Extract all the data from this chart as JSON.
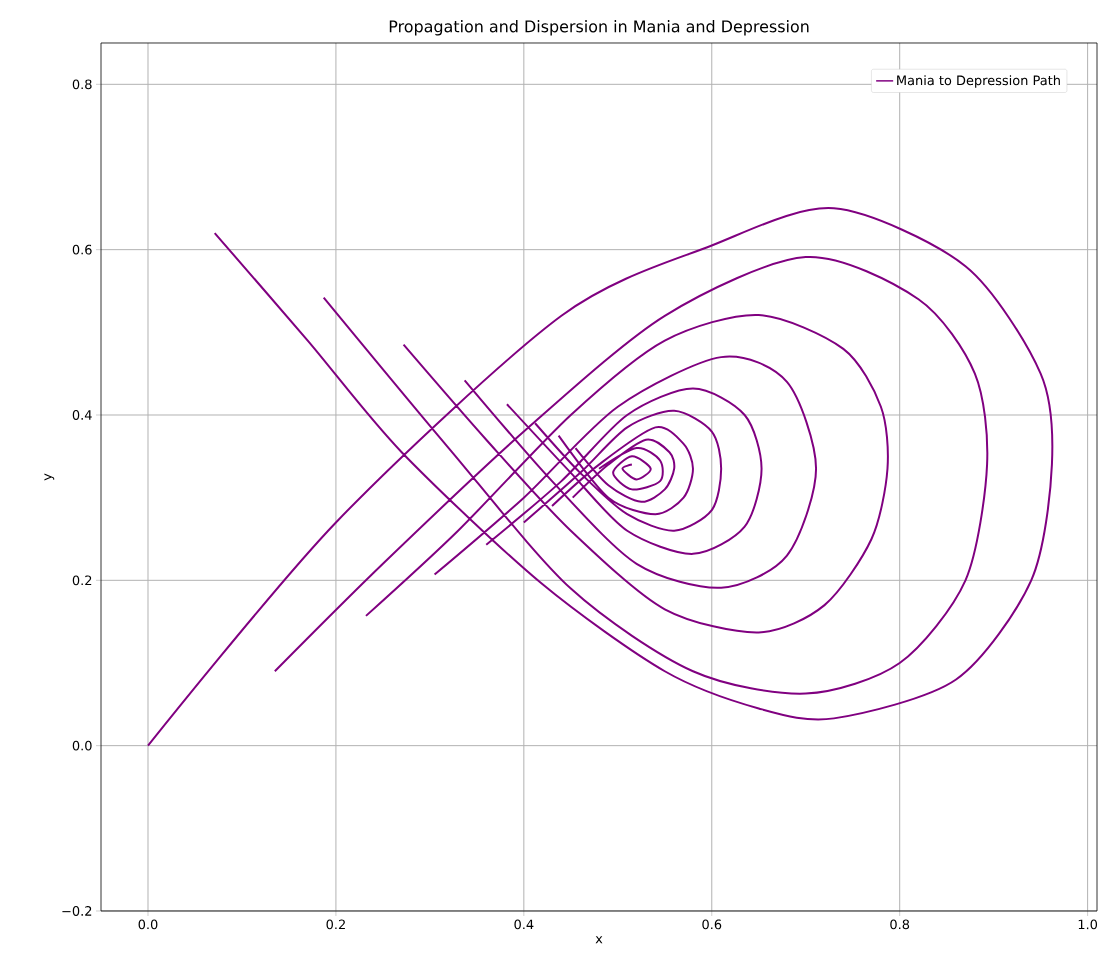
{
  "chart_data": {
    "type": "line",
    "title": "Propagation and Dispersion in Mania and Depression",
    "xlabel": "x",
    "ylabel": "y",
    "xlim": [
      -0.05,
      1.01
    ],
    "ylim": [
      -0.2,
      0.85
    ],
    "xticks": [
      {
        "value": 0,
        "label": "0.0"
      },
      0.2,
      0.4,
      0.6,
      0.8,
      {
        "value": 1,
        "label": "1.0"
      }
    ],
    "yticks": [
      {
        "value": -0.2,
        "label": "−0.2"
      },
      {
        "value": 0,
        "label": "0.0"
      },
      0.2,
      0.4,
      0.6,
      0.8
    ],
    "grid": true,
    "legend": "top right",
    "marker": "none",
    "line_style": "solid",
    "series": [
      {
        "name": "Mania to Depression Path",
        "color": "#800080",
        "x": [
          0,
          0.2,
          0.44,
          0.6,
          0.73,
          0.87,
          0.95,
          0.962,
          0.94,
          0.86,
          0.73,
          0.65,
          0.55,
          0.418,
          0.27,
          0.17,
          0.071,
          null,
          0.135,
          0.25,
          0.4,
          0.55,
          0.7,
          0.82,
          0.88,
          0.893,
          0.87,
          0.8,
          0.7,
          0.58,
          0.45,
          0.32,
          0.187,
          null,
          0.232,
          0.33,
          0.45,
          0.55,
          0.65,
          0.74,
          0.78,
          0.787,
          0.77,
          0.72,
          0.65,
          0.55,
          0.45,
          0.36,
          0.272,
          null,
          0.305,
          0.4,
          0.5,
          0.61,
          0.68,
          0.711,
          0.68,
          0.61,
          0.52,
          0.43,
          0.337,
          null,
          0.36,
          0.44,
          0.51,
          0.58,
          0.635,
          0.653,
          0.635,
          0.58,
          0.51,
          0.45,
          0.382,
          null,
          0.4,
          0.46,
          0.51,
          0.56,
          0.6,
          0.61,
          0.6,
          0.56,
          0.51,
          0.46,
          0.412,
          null,
          0.43,
          0.48,
          0.54,
          0.57,
          0.58,
          0.57,
          0.54,
          0.49,
          0.437,
          null,
          0.452,
          0.49,
          0.53,
          0.555,
          0.56,
          0.55,
          0.525,
          0.49,
          0.455,
          null,
          0.48,
          0.52,
          0.545,
          0.545,
          0.515,
          0.495,
          0.515,
          0.535,
          0.52,
          0.505,
          0.515
        ],
        "values": [
          0,
          0.27,
          0.52,
          0.605,
          0.65,
          0.58,
          0.45,
          0.34,
          0.2,
          0.08,
          0.033,
          0.045,
          0.09,
          0.197,
          0.355,
          0.49,
          0.62,
          null,
          0.09,
          0.22,
          0.38,
          0.52,
          0.591,
          0.54,
          0.45,
          0.34,
          0.2,
          0.1,
          0.063,
          0.09,
          0.19,
          0.36,
          0.542,
          null,
          0.157,
          0.26,
          0.4,
          0.49,
          0.521,
          0.48,
          0.41,
          0.335,
          0.25,
          0.17,
          0.137,
          0.165,
          0.26,
          0.37,
          0.485,
          null,
          0.207,
          0.3,
          0.41,
          0.47,
          0.44,
          0.335,
          0.23,
          0.191,
          0.22,
          0.32,
          0.442,
          null,
          0.243,
          0.32,
          0.4,
          0.432,
          0.4,
          0.335,
          0.265,
          0.232,
          0.26,
          0.33,
          0.413,
          null,
          0.27,
          0.33,
          0.385,
          0.405,
          0.38,
          0.335,
          0.285,
          0.26,
          0.28,
          0.33,
          0.39,
          null,
          0.29,
          0.34,
          0.385,
          0.365,
          0.335,
          0.3,
          0.28,
          0.3,
          0.375,
          null,
          0.3,
          0.34,
          0.37,
          0.355,
          0.335,
          0.31,
          0.295,
          0.315,
          0.36,
          null,
          0.335,
          0.36,
          0.345,
          0.32,
          0.31,
          0.33,
          0.35,
          0.335,
          0.322,
          0.335,
          0.34
        ]
      }
    ]
  }
}
